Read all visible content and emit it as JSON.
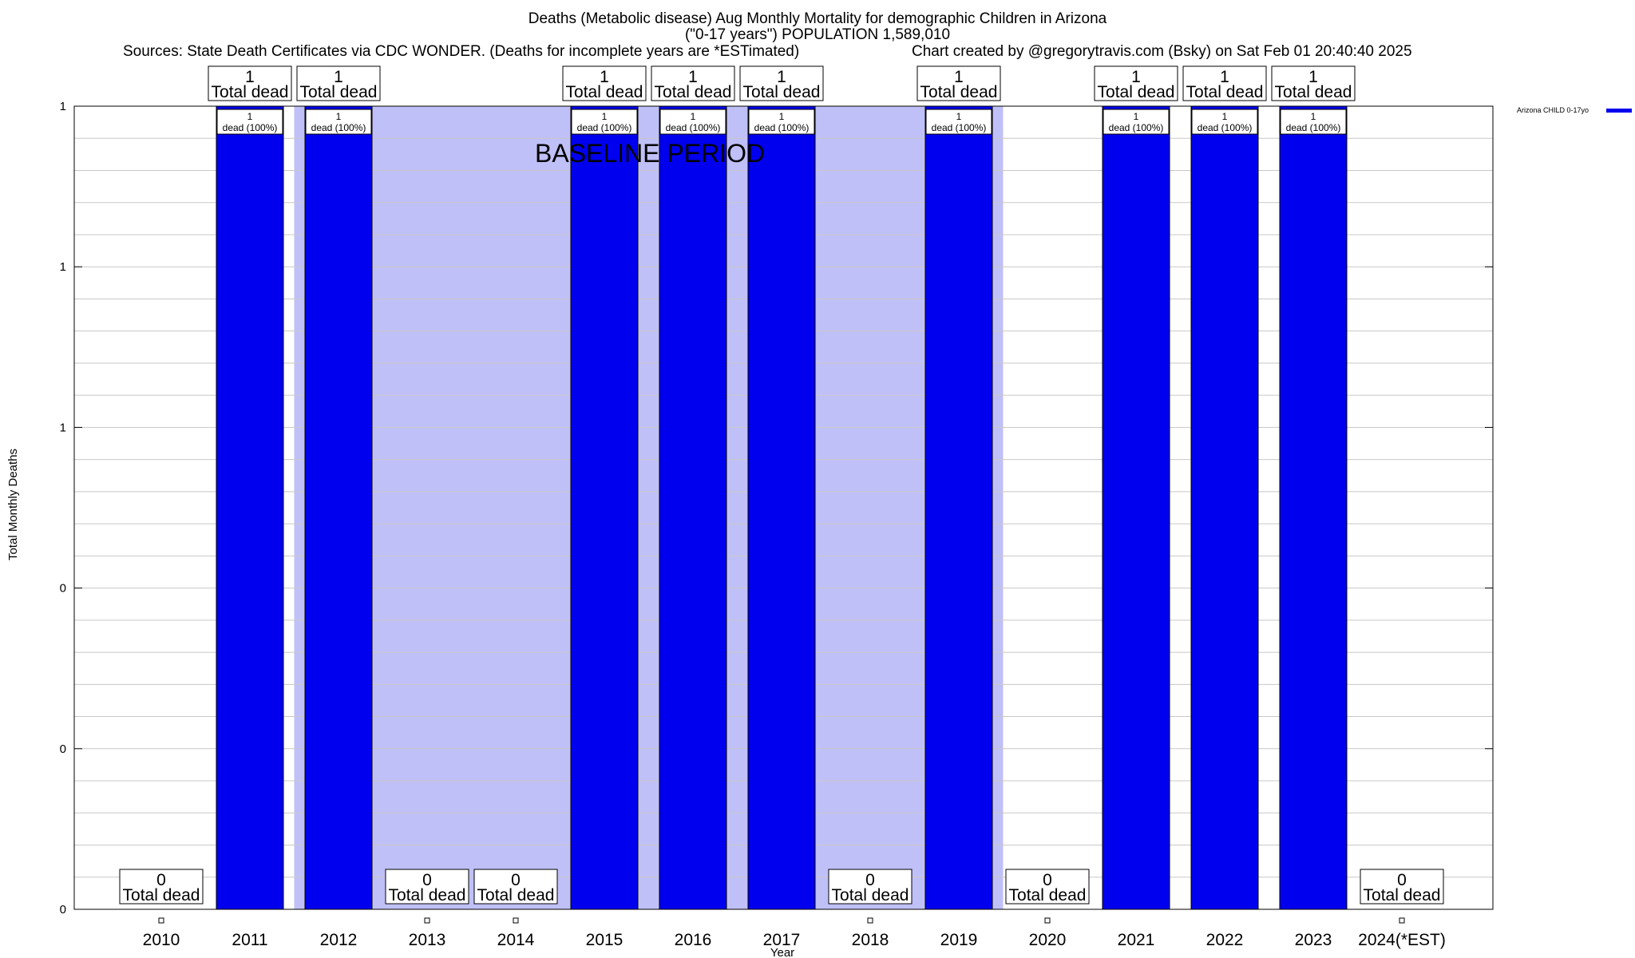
{
  "header": {
    "title_line1": "Deaths (Metabolic disease) Aug Monthly Mortality for demographic Children in Arizona",
    "title_line2": "(\"0-17 years\") POPULATION 1,589,010",
    "sources": "Sources: State Death Certificates via CDC WONDER. (Deaths for incomplete years are *ESTimated)",
    "credit": "Chart created by @gregorytravis.com (Bsky) on Sat Feb 01 20:40:40 2025"
  },
  "colors": {
    "bar": "#0000ee",
    "baseline_shade": "#c0c0f8",
    "grid": "#c8c8c8",
    "axis": "#000000"
  },
  "chart_data": {
    "type": "bar",
    "xlabel": "Year",
    "ylabel": "Total Monthly Deaths",
    "ylim": [
      0,
      1
    ],
    "y_tick_labels": [
      "0",
      "0",
      "0",
      "1",
      "1",
      "1"
    ],
    "categories": [
      "2010",
      "2011",
      "2012",
      "2013",
      "2014",
      "2015",
      "2016",
      "2017",
      "2018",
      "2019",
      "2020",
      "2021",
      "2022",
      "2023",
      "2024(*EST)"
    ],
    "series": [
      {
        "name": "Arizona CHILD 0-17yo",
        "values": [
          0,
          1,
          1,
          0,
          0,
          1,
          1,
          1,
          0,
          1,
          0,
          1,
          1,
          1,
          0
        ]
      }
    ],
    "total_labels": [
      "0\nTotal dead",
      "1\nTotal dead",
      "1\nTotal dead",
      "0\nTotal dead",
      "0\nTotal dead",
      "1\nTotal dead",
      "1\nTotal dead",
      "1\nTotal dead",
      "0\nTotal dead",
      "1\nTotal dead",
      "0\nTotal dead",
      "1\nTotal dead",
      "1\nTotal dead",
      "1\nTotal dead",
      "0\nTotal dead"
    ],
    "total_label_suffix": "Total dead",
    "inner_label_suffix": "dead (100%)",
    "baseline_period": {
      "label": "BASELINE PERIOD",
      "start": "2012",
      "end": "2019"
    },
    "legend": {
      "entry": "Arizona CHILD 0-17yo",
      "placement": "top-right"
    },
    "grid": true
  }
}
